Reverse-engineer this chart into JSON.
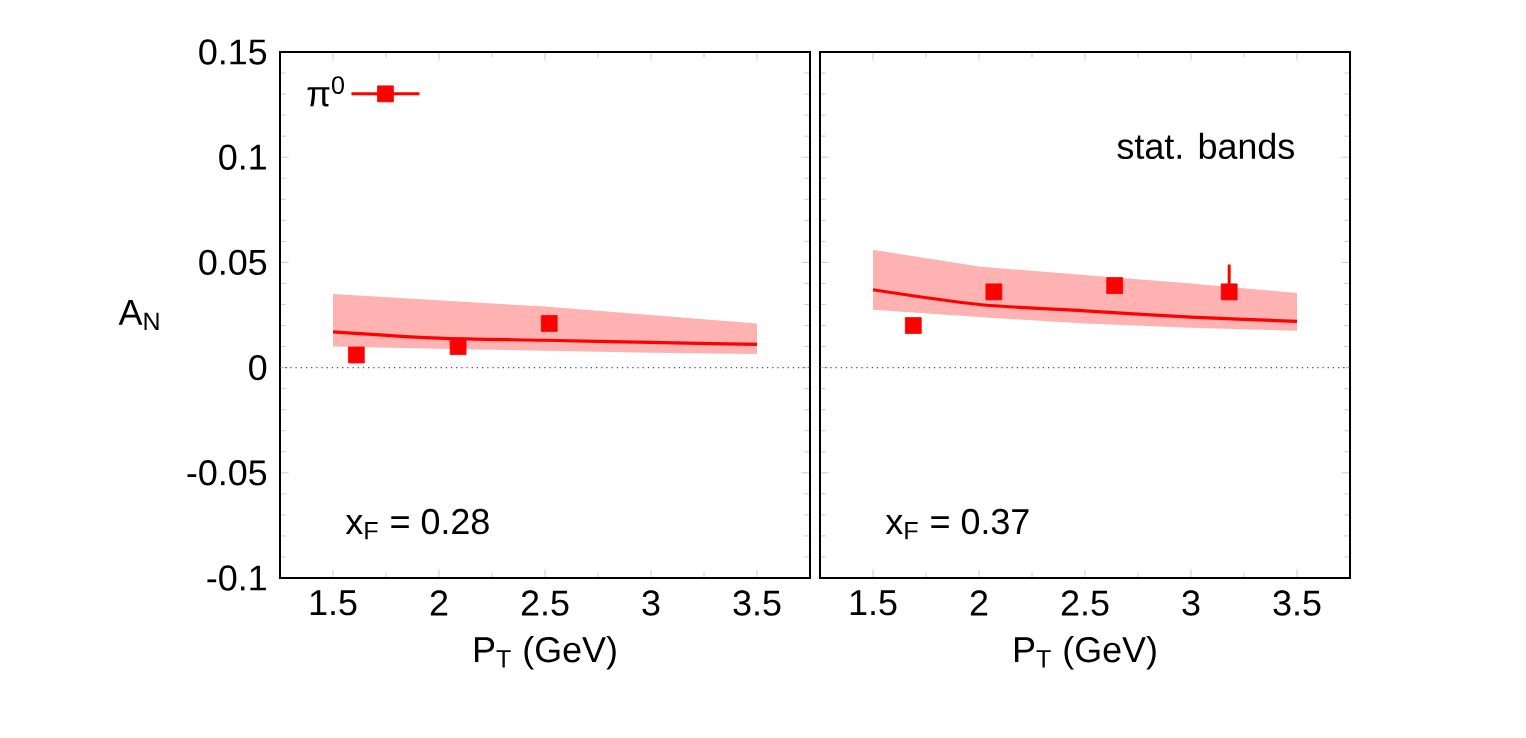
{
  "chart_data": [
    {
      "type": "scatter",
      "ylabel": "A$_{N}$",
      "xlabel": "P$_{T}$ (GeV)",
      "xlim": [
        1.25,
        3.75
      ],
      "ylim": [
        -0.1,
        0.15
      ],
      "xticks": [
        1.5,
        2,
        2.5,
        3,
        3.5
      ],
      "yticks": [
        -0.1,
        -0.05,
        0,
        0.05,
        0.1,
        0.15
      ],
      "legend": "top left",
      "marker": "square",
      "annotations": [
        "x$_{F}$ = 0.28"
      ],
      "ref_lines": [
        {
          "axis": "y",
          "value": 0,
          "color": "#3333ff",
          "line_style": "dotted"
        }
      ],
      "series": [
        {
          "name": "π$^{0}$",
          "color": "#ff0000",
          "x": [
            1.61,
            2.09,
            2.52
          ],
          "values": [
            0.006,
            0.01,
            0.021
          ],
          "errors": [
            null,
            null,
            0.006
          ]
        },
        {
          "type": "line",
          "color": "#ff0000",
          "marker": "none",
          "x": [
            1.5,
            2,
            2.5,
            3,
            3.5
          ],
          "values": [
            0.017,
            0.014,
            0.013,
            0.012,
            0.011
          ],
          "lower": [
            0.01,
            0.009,
            0.008,
            0.007,
            0.0065
          ],
          "upper": [
            0.035,
            0.032,
            0.029,
            0.025,
            0.021
          ]
        }
      ]
    },
    {
      "type": "scatter",
      "xlabel": "P$_{T}$ (GeV)",
      "xlim": [
        1.25,
        3.75
      ],
      "ylim": [
        -0.1,
        0.15
      ],
      "xticks": [
        1.5,
        2,
        2.5,
        3,
        3.5
      ],
      "yticks": [
        -0.1,
        -0.05,
        0,
        0.05,
        0.1,
        0.15
      ],
      "tick_labels": "x",
      "marker": "square",
      "annotations": [
        "stat. bands",
        "x$_{F}$ = 0.37"
      ],
      "ref_lines": [
        {
          "axis": "y",
          "value": 0,
          "color": "#3333ff",
          "line_style": "dotted"
        }
      ],
      "series": [
        {
          "color": "#ff0000",
          "x": [
            1.69,
            2.07,
            2.64,
            3.18
          ],
          "values": [
            0.02,
            0.036,
            0.039,
            0.036
          ],
          "errors": [
            null,
            null,
            0.003,
            0.013
          ]
        },
        {
          "type": "line",
          "color": "#ff0000",
          "marker": "none",
          "x": [
            1.5,
            2,
            2.5,
            3,
            3.5
          ],
          "values": [
            0.037,
            0.03,
            0.027,
            0.024,
            0.022
          ],
          "lower": [
            0.0275,
            0.024,
            0.021,
            0.019,
            0.0175
          ],
          "upper": [
            0.056,
            0.048,
            0.044,
            0.04,
            0.0355
          ]
        }
      ]
    }
  ]
}
